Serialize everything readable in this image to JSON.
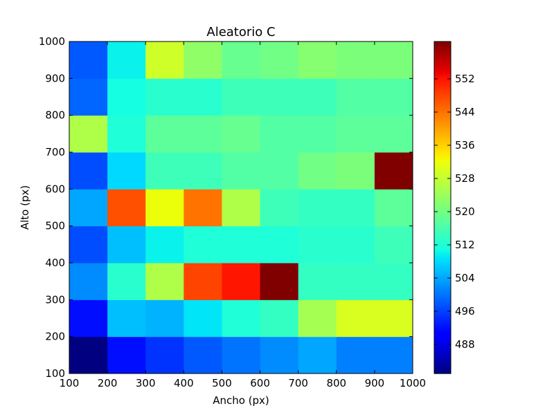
{
  "chart_data": {
    "type": "heatmap",
    "title": "Aleatorio C",
    "xlabel": "Ancho (px)",
    "ylabel": "Alto (px)",
    "x_edges": [
      100,
      200,
      300,
      400,
      500,
      600,
      700,
      800,
      900,
      1000
    ],
    "y_edges": [
      100,
      200,
      300,
      400,
      500,
      600,
      700,
      800,
      900,
      1000
    ],
    "x_ticks": [
      "100",
      "200",
      "300",
      "400",
      "500",
      "600",
      "700",
      "800",
      "900",
      "1000"
    ],
    "y_ticks": [
      "100",
      "200",
      "300",
      "400",
      "500",
      "600",
      "700",
      "800",
      "900",
      "1000"
    ],
    "xlim": [
      100,
      1000
    ],
    "ylim": [
      100,
      1000
    ],
    "grid": false,
    "colormap": "jet",
    "color_range": [
      481,
      561
    ],
    "colorbar_ticks": [
      "488",
      "496",
      "504",
      "512",
      "520",
      "528",
      "536",
      "544",
      "552"
    ],
    "values_rows_bottom_to_top": [
      [
        481,
        492,
        495,
        498,
        500,
        502,
        504,
        501,
        501
      ],
      [
        492,
        506,
        505,
        509,
        512,
        514,
        525,
        530,
        530
      ],
      [
        502,
        513,
        526,
        548,
        552,
        561,
        514,
        514,
        514
      ],
      [
        497,
        506,
        510,
        512,
        512,
        512,
        513,
        513,
        515
      ],
      [
        504,
        547,
        532,
        544,
        526,
        515,
        514,
        514,
        518
      ],
      [
        497,
        508,
        515,
        515,
        517,
        517,
        520,
        521,
        561
      ],
      [
        526,
        512,
        518,
        518,
        519,
        517,
        517,
        518,
        518
      ],
      [
        499,
        511,
        513,
        513,
        515,
        515,
        515,
        517,
        517
      ],
      [
        498,
        510,
        529,
        523,
        519,
        520,
        522,
        521,
        521
      ]
    ]
  }
}
